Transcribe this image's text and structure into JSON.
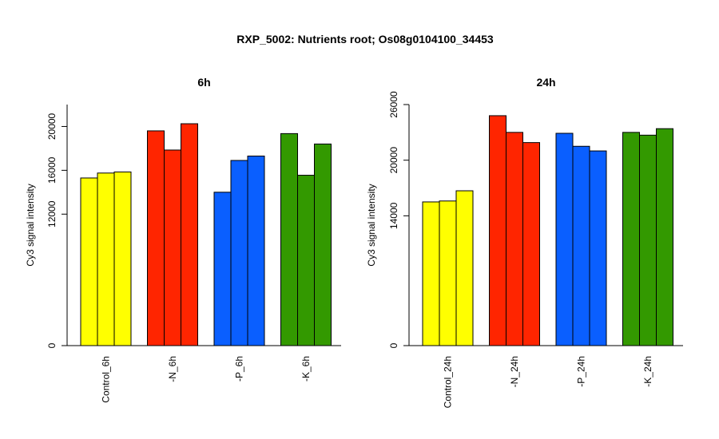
{
  "figure": {
    "title": "RXP_5002: Nutrients root; Os08g0104100_34453"
  },
  "chart_data": [
    {
      "type": "bar",
      "title": "6h",
      "ylabel": "Cy3 signal intensity",
      "ylim": [
        0,
        22000
      ],
      "yticks": [
        0,
        12000,
        16000,
        20000
      ],
      "categories": [
        "Control_6h",
        "-N_6h",
        "-P_6h",
        "-K_6h"
      ],
      "group_colors": [
        "#ffff00",
        "#ff2500",
        "#0a5fff",
        "#339900"
      ],
      "values": [
        [
          15300,
          15750,
          15850
        ],
        [
          19600,
          17850,
          20250
        ],
        [
          14000,
          16900,
          17300
        ],
        [
          19350,
          15550,
          18400
        ]
      ]
    },
    {
      "type": "bar",
      "title": "24h",
      "ylabel": "Cy3 signal intensity",
      "ylim": [
        0,
        26000
      ],
      "yticks": [
        0,
        14000,
        20000,
        26000
      ],
      "categories": [
        "Control_24h",
        "-N_24h",
        "-P_24h",
        "-K_24h"
      ],
      "group_colors": [
        "#ffff00",
        "#ff2500",
        "#0a5fff",
        "#339900"
      ],
      "values": [
        [
          15500,
          15600,
          16700
        ],
        [
          24800,
          23000,
          21900
        ],
        [
          22900,
          21500,
          21000
        ],
        [
          23000,
          22700,
          23400
        ]
      ]
    }
  ]
}
